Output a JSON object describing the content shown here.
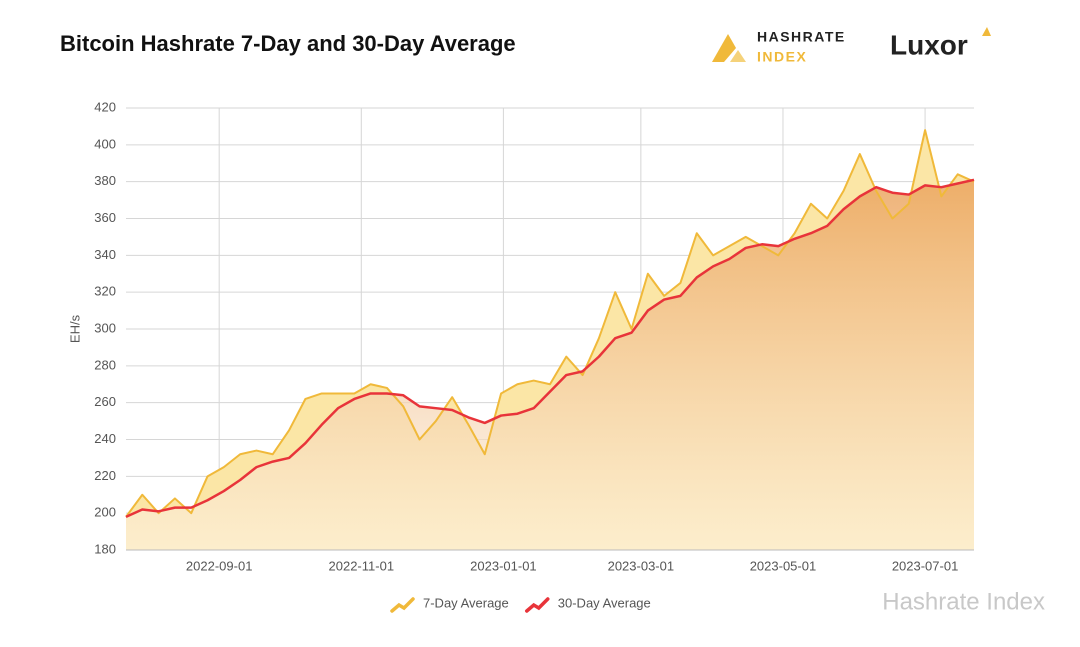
{
  "header": {
    "logo_top": "HASHRATE",
    "logo_bottom": "INDEX",
    "brand": "Luxor",
    "watermark": "Hashrate Index"
  },
  "chart_data": {
    "type": "line",
    "title": "Bitcoin Hashrate 7-Day and 30-Day Average",
    "y_label": "EH/s",
    "x": [
      "2022-07-23",
      "2022-07-30",
      "2022-08-06",
      "2022-08-13",
      "2022-08-20",
      "2022-08-27",
      "2022-09-03",
      "2022-09-10",
      "2022-09-17",
      "2022-09-24",
      "2022-10-01",
      "2022-10-08",
      "2022-10-15",
      "2022-10-22",
      "2022-10-29",
      "2022-11-05",
      "2022-11-12",
      "2022-11-19",
      "2022-11-26",
      "2022-12-03",
      "2022-12-10",
      "2022-12-17",
      "2022-12-24",
      "2022-12-31",
      "2023-01-07",
      "2023-01-14",
      "2023-01-21",
      "2023-01-28",
      "2023-02-04",
      "2023-02-11",
      "2023-02-18",
      "2023-02-25",
      "2023-03-04",
      "2023-03-11",
      "2023-03-18",
      "2023-03-25",
      "2023-04-01",
      "2023-04-08",
      "2023-04-15",
      "2023-04-22",
      "2023-04-29",
      "2023-05-06",
      "2023-05-13",
      "2023-05-20",
      "2023-05-27",
      "2023-06-03",
      "2023-06-10",
      "2023-06-17",
      "2023-06-24",
      "2023-07-01",
      "2023-07-08",
      "2023-07-15",
      "2023-07-22"
    ],
    "series": [
      {
        "name": "7-Day Average",
        "color": "#f0b93a",
        "values": [
          198,
          210,
          200,
          208,
          200,
          220,
          225,
          232,
          234,
          232,
          245,
          262,
          265,
          265,
          265,
          270,
          268,
          258,
          240,
          250,
          263,
          248,
          232,
          265,
          270,
          272,
          270,
          285,
          275,
          295,
          320,
          300,
          330,
          318,
          325,
          352,
          340,
          345,
          350,
          345,
          340,
          352,
          368,
          360,
          375,
          395,
          375,
          360,
          368,
          408,
          372,
          384,
          380
        ]
      },
      {
        "name": "30-Day Average",
        "color": "#e8343a",
        "values": [
          198,
          202,
          201,
          203,
          203,
          207,
          212,
          218,
          225,
          228,
          230,
          238,
          248,
          257,
          262,
          265,
          265,
          264,
          258,
          257,
          256,
          252,
          249,
          253,
          254,
          257,
          266,
          275,
          277,
          285,
          295,
          298,
          310,
          316,
          318,
          328,
          334,
          338,
          344,
          346,
          345,
          349,
          352,
          356,
          365,
          372,
          377,
          374,
          373,
          378,
          377,
          379,
          381
        ]
      }
    ],
    "xlim": [
      "2022-07-23",
      "2023-07-22"
    ],
    "xticks": [
      "2022-09-01",
      "2022-11-01",
      "2023-01-01",
      "2023-03-01",
      "2023-05-01",
      "2023-07-01"
    ],
    "ylim": [
      180,
      420
    ],
    "yticks": [
      180,
      200,
      220,
      240,
      260,
      280,
      300,
      320,
      340,
      360,
      380,
      400,
      420
    ],
    "grid": true,
    "legend": "bottom"
  }
}
